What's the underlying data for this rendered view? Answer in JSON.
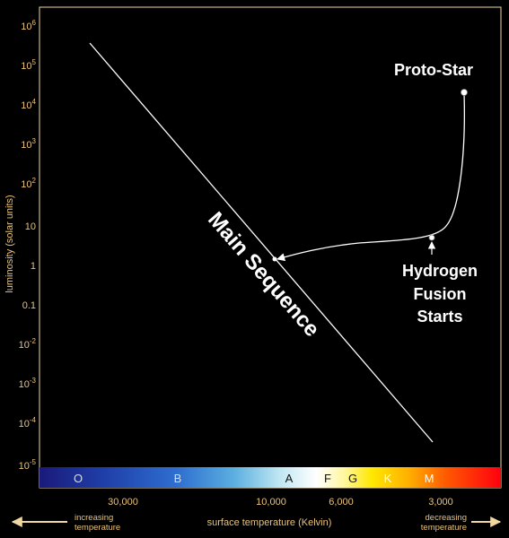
{
  "diagram": {
    "y_axis": {
      "label": "luminosity (solar units)",
      "ticks": [
        {
          "base": "10",
          "exp": "6"
        },
        {
          "base": "10",
          "exp": "5"
        },
        {
          "base": "10",
          "exp": "4"
        },
        {
          "base": "10",
          "exp": "3"
        },
        {
          "base": "10",
          "exp": "2"
        },
        {
          "base": "10",
          "exp": ""
        },
        {
          "base": "1",
          "exp": ""
        },
        {
          "base": "0.1",
          "exp": ""
        },
        {
          "base": "10",
          "exp": "-2"
        },
        {
          "base": "10",
          "exp": "-3"
        },
        {
          "base": "10",
          "exp": "-4"
        },
        {
          "base": "10",
          "exp": "-5"
        }
      ]
    },
    "x_axis": {
      "label": "surface temperature (Kelvin)",
      "ticks": [
        "30,000",
        "10,000",
        "6,000",
        "3,000"
      ]
    },
    "spectral_classes": [
      {
        "letter": "O",
        "color": "#dddddd"
      },
      {
        "letter": "B",
        "color": "#dddddd"
      },
      {
        "letter": "A",
        "color": "#111111"
      },
      {
        "letter": "F",
        "color": "#111111"
      },
      {
        "letter": "G",
        "color": "#111111"
      },
      {
        "letter": "K",
        "color": "#ffffff"
      },
      {
        "letter": "M",
        "color": "#ffffff"
      }
    ],
    "left_arrow_label": [
      "increasing",
      "temperature"
    ],
    "right_arrow_label": [
      "decreasing",
      "temperature"
    ],
    "annotations": {
      "proto_star": "Proto-Star",
      "hydrogen_fusion": [
        "Hydrogen",
        "Fusion",
        "Starts"
      ],
      "main_sequence": "Main Sequence"
    },
    "colors": {
      "background": "#000000",
      "frame": "#f0d8a0",
      "axis_text": "#e8c27a",
      "lines": "#ffffff"
    }
  }
}
